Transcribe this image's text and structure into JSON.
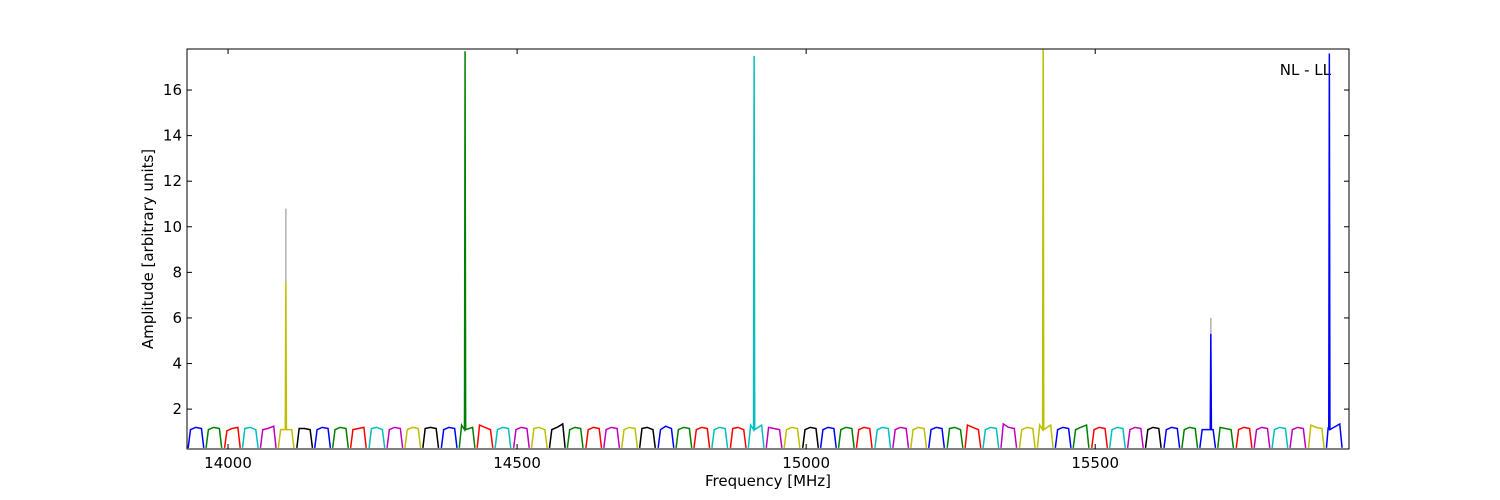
{
  "chart_data": {
    "type": "line",
    "x_label": "Frequency [MHz]",
    "y_label": "Amplitude [arbitrary units]",
    "annotation": "NL - LL",
    "xlim": [
      13929,
      15939
    ],
    "ylim": [
      0.25,
      17.8
    ],
    "xticks": [
      14000,
      14500,
      15000,
      15500
    ],
    "yticks": [
      2,
      4,
      6,
      8,
      10,
      12,
      14,
      16
    ],
    "grid": false,
    "series": [
      {
        "color": "#b0b0b0",
        "x": [
          14100,
          14100
        ],
        "values": [
          7.6,
          10.8
        ]
      },
      {
        "color": "#b0b0b0",
        "x": [
          15700,
          15700
        ],
        "values": [
          5.3,
          6.0
        ]
      },
      {
        "color": "#0000ff",
        "x": [
          13931,
          13935,
          13944,
          13954,
          13958
        ],
        "values": [
          0.3,
          1.1,
          1.2,
          1.15,
          0.3
        ]
      },
      {
        "color": "#008000",
        "x": [
          13962,
          13966,
          13975,
          13985,
          13989
        ],
        "values": [
          0.3,
          1.1,
          1.2,
          1.15,
          0.3
        ]
      },
      {
        "color": "#ff0000",
        "x": [
          13994,
          13998,
          14007,
          14017,
          14021
        ],
        "values": [
          0.3,
          1.05,
          1.15,
          1.2,
          0.3
        ]
      },
      {
        "color": "#00bfbf",
        "x": [
          14025,
          14029,
          14038,
          14048,
          14052
        ],
        "values": [
          0.3,
          1.15,
          1.2,
          1.1,
          0.3
        ]
      },
      {
        "color": "#bf00bf",
        "x": [
          14056,
          14060,
          14069,
          14079,
          14083
        ],
        "values": [
          0.3,
          1.1,
          1.15,
          1.25,
          0.3
        ]
      },
      {
        "color": "#bfbf00",
        "x": [
          14087,
          14091,
          14099,
          14100,
          14101,
          14110,
          14114
        ],
        "values": [
          0.3,
          1.1,
          1.1,
          7.6,
          1.1,
          1.1,
          0.3
        ]
      },
      {
        "color": "#000000",
        "x": [
          14119,
          14123,
          14132,
          14142,
          14146
        ],
        "values": [
          0.3,
          1.15,
          1.15,
          1.1,
          0.3
        ]
      },
      {
        "color": "#0000ff",
        "x": [
          14150,
          14154,
          14163,
          14173,
          14177
        ],
        "values": [
          0.3,
          1.1,
          1.2,
          1.15,
          0.3
        ]
      },
      {
        "color": "#008000",
        "x": [
          14181,
          14185,
          14194,
          14204,
          14208
        ],
        "values": [
          0.3,
          1.1,
          1.2,
          1.15,
          0.3
        ]
      },
      {
        "color": "#ff0000",
        "x": [
          14212,
          14216,
          14225,
          14235,
          14239
        ],
        "values": [
          0.3,
          1.1,
          1.15,
          1.2,
          0.3
        ]
      },
      {
        "color": "#00bfbf",
        "x": [
          14244,
          14248,
          14257,
          14267,
          14271
        ],
        "values": [
          0.3,
          1.15,
          1.2,
          1.1,
          0.3
        ]
      },
      {
        "color": "#bf00bf",
        "x": [
          14275,
          14279,
          14288,
          14298,
          14302
        ],
        "values": [
          0.3,
          1.1,
          1.2,
          1.15,
          0.3
        ]
      },
      {
        "color": "#bfbf00",
        "x": [
          14306,
          14310,
          14319,
          14329,
          14333
        ],
        "values": [
          0.3,
          1.1,
          1.2,
          1.15,
          0.3
        ]
      },
      {
        "color": "#000000",
        "x": [
          14337,
          14341,
          14350,
          14360,
          14364
        ],
        "values": [
          0.3,
          1.15,
          1.2,
          1.15,
          0.3
        ]
      },
      {
        "color": "#0000ff",
        "x": [
          14369,
          14373,
          14382,
          14392,
          14396
        ],
        "values": [
          0.3,
          1.1,
          1.2,
          1.15,
          0.3
        ]
      },
      {
        "color": "#008000",
        "x": [
          14400,
          14404,
          14409,
          14410,
          14411,
          14423,
          14427
        ],
        "values": [
          0.3,
          1.3,
          1.1,
          17.7,
          1.1,
          1.2,
          0.3
        ]
      },
      {
        "color": "#ff0000",
        "x": [
          14431,
          14435,
          14444,
          14454,
          14458
        ],
        "values": [
          0.3,
          1.3,
          1.2,
          1.1,
          0.3
        ]
      },
      {
        "color": "#00bfbf",
        "x": [
          14462,
          14466,
          14475,
          14485,
          14489
        ],
        "values": [
          0.3,
          1.1,
          1.2,
          1.15,
          0.3
        ]
      },
      {
        "color": "#bf00bf",
        "x": [
          14494,
          14498,
          14507,
          14517,
          14521
        ],
        "values": [
          0.3,
          1.1,
          1.2,
          1.15,
          0.3
        ]
      },
      {
        "color": "#bfbf00",
        "x": [
          14525,
          14529,
          14538,
          14548,
          14552
        ],
        "values": [
          0.3,
          1.15,
          1.2,
          1.1,
          0.3
        ]
      },
      {
        "color": "#000000",
        "x": [
          14556,
          14560,
          14569,
          14579,
          14583
        ],
        "values": [
          0.3,
          1.1,
          1.2,
          1.35,
          0.3
        ]
      },
      {
        "color": "#008000",
        "x": [
          14587,
          14591,
          14600,
          14610,
          14614
        ],
        "values": [
          0.3,
          1.1,
          1.2,
          1.15,
          0.3
        ]
      },
      {
        "color": "#ff0000",
        "x": [
          14619,
          14623,
          14632,
          14642,
          14646
        ],
        "values": [
          0.3,
          1.1,
          1.2,
          1.15,
          0.3
        ]
      },
      {
        "color": "#bf00bf",
        "x": [
          14650,
          14654,
          14663,
          14673,
          14677
        ],
        "values": [
          0.3,
          1.1,
          1.2,
          1.15,
          0.3
        ]
      },
      {
        "color": "#bfbf00",
        "x": [
          14681,
          14685,
          14694,
          14704,
          14708
        ],
        "values": [
          0.3,
          1.1,
          1.2,
          1.15,
          0.3
        ]
      },
      {
        "color": "#000000",
        "x": [
          14712,
          14716,
          14725,
          14735,
          14739
        ],
        "values": [
          0.3,
          1.15,
          1.2,
          1.1,
          0.3
        ]
      },
      {
        "color": "#0000ff",
        "x": [
          14744,
          14748,
          14757,
          14767,
          14771
        ],
        "values": [
          0.3,
          1.1,
          1.25,
          1.15,
          0.3
        ]
      },
      {
        "color": "#008000",
        "x": [
          14775,
          14779,
          14788,
          14798,
          14802
        ],
        "values": [
          0.3,
          1.1,
          1.2,
          1.15,
          0.3
        ]
      },
      {
        "color": "#ff0000",
        "x": [
          14806,
          14810,
          14819,
          14829,
          14833
        ],
        "values": [
          0.3,
          1.1,
          1.2,
          1.15,
          0.3
        ]
      },
      {
        "color": "#00bfbf",
        "x": [
          14837,
          14841,
          14850,
          14860,
          14864
        ],
        "values": [
          0.3,
          1.1,
          1.2,
          1.15,
          0.3
        ]
      },
      {
        "color": "#ff0000",
        "x": [
          14869,
          14873,
          14882,
          14892,
          14896
        ],
        "values": [
          0.3,
          1.15,
          1.2,
          1.1,
          0.3
        ]
      },
      {
        "color": "#00bfbf",
        "x": [
          14900,
          14904,
          14909,
          14910,
          14911,
          14923,
          14927
        ],
        "values": [
          0.3,
          1.3,
          1.1,
          17.5,
          1.1,
          1.3,
          0.3
        ]
      },
      {
        "color": "#bf00bf",
        "x": [
          14931,
          14935,
          14944,
          14954,
          14958
        ],
        "values": [
          0.3,
          1.2,
          1.15,
          1.1,
          0.3
        ]
      },
      {
        "color": "#bfbf00",
        "x": [
          14962,
          14966,
          14975,
          14985,
          14989
        ],
        "values": [
          0.3,
          1.1,
          1.2,
          1.15,
          0.3
        ]
      },
      {
        "color": "#000000",
        "x": [
          14994,
          14998,
          15007,
          15017,
          15021
        ],
        "values": [
          0.3,
          1.1,
          1.2,
          1.15,
          0.3
        ]
      },
      {
        "color": "#0000ff",
        "x": [
          15025,
          15029,
          15038,
          15048,
          15052
        ],
        "values": [
          0.3,
          1.1,
          1.2,
          1.15,
          0.3
        ]
      },
      {
        "color": "#008000",
        "x": [
          15056,
          15060,
          15069,
          15079,
          15083
        ],
        "values": [
          0.3,
          1.1,
          1.2,
          1.15,
          0.3
        ]
      },
      {
        "color": "#ff0000",
        "x": [
          15087,
          15091,
          15100,
          15110,
          15114
        ],
        "values": [
          0.3,
          1.1,
          1.2,
          1.15,
          0.3
        ]
      },
      {
        "color": "#00bfbf",
        "x": [
          15119,
          15123,
          15132,
          15142,
          15146
        ],
        "values": [
          0.3,
          1.1,
          1.2,
          1.15,
          0.3
        ]
      },
      {
        "color": "#bf00bf",
        "x": [
          15150,
          15154,
          15163,
          15173,
          15177
        ],
        "values": [
          0.3,
          1.1,
          1.2,
          1.15,
          0.3
        ]
      },
      {
        "color": "#bfbf00",
        "x": [
          15181,
          15185,
          15194,
          15204,
          15208
        ],
        "values": [
          0.3,
          1.1,
          1.2,
          1.15,
          0.3
        ]
      },
      {
        "color": "#0000ff",
        "x": [
          15212,
          15216,
          15225,
          15235,
          15239
        ],
        "values": [
          0.3,
          1.1,
          1.2,
          1.15,
          0.3
        ]
      },
      {
        "color": "#008000",
        "x": [
          15244,
          15248,
          15257,
          15267,
          15271
        ],
        "values": [
          0.3,
          1.15,
          1.2,
          1.1,
          0.3
        ]
      },
      {
        "color": "#ff0000",
        "x": [
          15275,
          15279,
          15288,
          15298,
          15302
        ],
        "values": [
          0.3,
          1.3,
          1.2,
          1.1,
          0.3
        ]
      },
      {
        "color": "#00bfbf",
        "x": [
          15306,
          15310,
          15319,
          15329,
          15333
        ],
        "values": [
          0.3,
          1.1,
          1.2,
          1.15,
          0.3
        ]
      },
      {
        "color": "#bf00bf",
        "x": [
          15337,
          15341,
          15350,
          15360,
          15364
        ],
        "values": [
          0.3,
          1.35,
          1.2,
          1.15,
          0.3
        ]
      },
      {
        "color": "#bfbf00",
        "x": [
          15369,
          15373,
          15382,
          15392,
          15396
        ],
        "values": [
          0.3,
          1.1,
          1.2,
          1.15,
          0.3
        ]
      },
      {
        "color": "#bfbf00",
        "x": [
          15400,
          15404,
          15409,
          15410,
          15411,
          15423,
          15427
        ],
        "values": [
          0.3,
          1.3,
          1.1,
          17.8,
          1.1,
          1.3,
          0.3
        ]
      },
      {
        "color": "#0000ff",
        "x": [
          15431,
          15435,
          15444,
          15454,
          15458
        ],
        "values": [
          0.3,
          1.1,
          1.2,
          1.15,
          0.3
        ]
      },
      {
        "color": "#008000",
        "x": [
          15462,
          15466,
          15475,
          15485,
          15489
        ],
        "values": [
          0.3,
          1.1,
          1.2,
          1.3,
          0.3
        ]
      },
      {
        "color": "#ff0000",
        "x": [
          15494,
          15498,
          15507,
          15517,
          15521
        ],
        "values": [
          0.3,
          1.1,
          1.2,
          1.15,
          0.3
        ]
      },
      {
        "color": "#00bfbf",
        "x": [
          15525,
          15529,
          15538,
          15548,
          15552
        ],
        "values": [
          0.3,
          1.1,
          1.2,
          1.15,
          0.3
        ]
      },
      {
        "color": "#bf00bf",
        "x": [
          15556,
          15560,
          15569,
          15579,
          15583
        ],
        "values": [
          0.3,
          1.1,
          1.2,
          1.15,
          0.3
        ]
      },
      {
        "color": "#000000",
        "x": [
          15587,
          15591,
          15600,
          15610,
          15614
        ],
        "values": [
          0.3,
          1.1,
          1.2,
          1.15,
          0.3
        ]
      },
      {
        "color": "#0000ff",
        "x": [
          15619,
          15623,
          15632,
          15642,
          15646
        ],
        "values": [
          0.3,
          1.1,
          1.2,
          1.15,
          0.3
        ]
      },
      {
        "color": "#008000",
        "x": [
          15650,
          15654,
          15663,
          15673,
          15677
        ],
        "values": [
          0.3,
          1.1,
          1.2,
          1.15,
          0.3
        ]
      },
      {
        "color": "#0000ff",
        "x": [
          15681,
          15685,
          15699,
          15700,
          15701,
          15704,
          15708
        ],
        "values": [
          0.3,
          1.1,
          1.1,
          5.3,
          1.1,
          1.1,
          0.3
        ]
      },
      {
        "color": "#008000",
        "x": [
          15712,
          15716,
          15725,
          15735,
          15739
        ],
        "values": [
          0.3,
          1.2,
          1.15,
          1.1,
          0.3
        ]
      },
      {
        "color": "#ff0000",
        "x": [
          15744,
          15748,
          15757,
          15767,
          15771
        ],
        "values": [
          0.3,
          1.1,
          1.2,
          1.15,
          0.3
        ]
      },
      {
        "color": "#bf00bf",
        "x": [
          15775,
          15779,
          15788,
          15798,
          15802
        ],
        "values": [
          0.3,
          1.1,
          1.2,
          1.15,
          0.3
        ]
      },
      {
        "color": "#00bfbf",
        "x": [
          15806,
          15810,
          15819,
          15829,
          15833
        ],
        "values": [
          0.3,
          1.1,
          1.2,
          1.15,
          0.3
        ]
      },
      {
        "color": "#bf00bf",
        "x": [
          15837,
          15841,
          15850,
          15860,
          15864
        ],
        "values": [
          0.3,
          1.1,
          1.2,
          1.15,
          0.3
        ]
      },
      {
        "color": "#bfbf00",
        "x": [
          15869,
          15873,
          15882,
          15892,
          15896
        ],
        "values": [
          0.3,
          1.3,
          1.2,
          1.15,
          0.3
        ]
      },
      {
        "color": "#0000ff",
        "x": [
          15900,
          15903,
          15904,
          15905,
          15906,
          15923,
          15927
        ],
        "values": [
          0.3,
          1.2,
          1.1,
          17.6,
          1.1,
          1.35,
          0.3
        ]
      }
    ]
  }
}
